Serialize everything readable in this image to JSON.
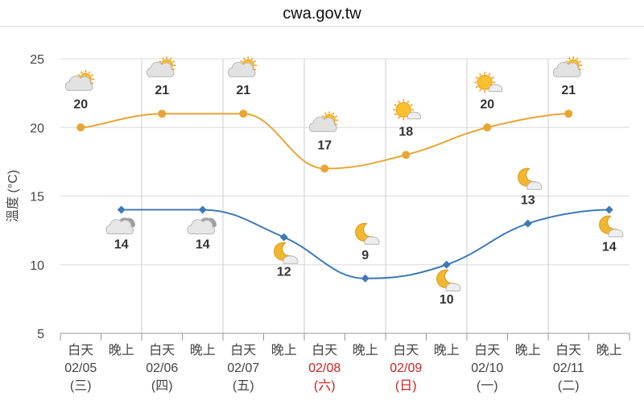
{
  "header": {
    "site": "cwa.gov.tw"
  },
  "chart_data": {
    "type": "line",
    "ylabel": "溫度 (°C)",
    "ylim": [
      5,
      25
    ],
    "yticks": [
      5,
      10,
      15,
      20,
      25
    ],
    "grid": true,
    "x": [
      "白天 02/05 (三)",
      "晚上",
      "白天 02/06 (四)",
      "晚上",
      "白天 02/07 (五)",
      "晚上",
      "白天 02/08 (六)",
      "晚上",
      "白天 02/09 (日)",
      "晚上",
      "白天 02/10 (一)",
      "晚上",
      "白天 02/11 (二)",
      "晚上"
    ],
    "columns": [
      {
        "period": "白天",
        "date": "02/05",
        "weekday": "(三)",
        "holiday": false
      },
      {
        "period": "晚上"
      },
      {
        "period": "白天",
        "date": "02/06",
        "weekday": "(四)",
        "holiday": false
      },
      {
        "period": "晚上"
      },
      {
        "period": "白天",
        "date": "02/07",
        "weekday": "(五)",
        "holiday": false
      },
      {
        "period": "晚上"
      },
      {
        "period": "白天",
        "date": "02/08",
        "weekday": "(六)",
        "holiday": true
      },
      {
        "period": "晚上"
      },
      {
        "period": "白天",
        "date": "02/09",
        "weekday": "(日)",
        "holiday": true
      },
      {
        "period": "晚上"
      },
      {
        "period": "白天",
        "date": "02/10",
        "weekday": "(一)",
        "holiday": false
      },
      {
        "period": "晚上"
      },
      {
        "period": "白天",
        "date": "02/11",
        "weekday": "(二)",
        "holiday": false
      },
      {
        "period": "晚上"
      }
    ],
    "series": [
      {
        "color": "#e8a534",
        "marker": "circle",
        "points": [
          {
            "x": 0,
            "y": 20,
            "icon": "partly-cloudy-sun-icon"
          },
          {
            "x": 2,
            "y": 21,
            "icon": "partly-cloudy-sun-icon"
          },
          {
            "x": 4,
            "y": 21,
            "icon": "partly-cloudy-sun-icon"
          },
          {
            "x": 6,
            "y": 17,
            "icon": "partly-cloudy-sun-icon"
          },
          {
            "x": 8,
            "y": 18,
            "icon": "sun-cloud-icon"
          },
          {
            "x": 10,
            "y": 20,
            "icon": "sun-cloud-icon"
          },
          {
            "x": 12,
            "y": 21,
            "icon": "partly-cloudy-sun-icon"
          }
        ]
      },
      {
        "color": "#3f7ab5",
        "marker": "diamond",
        "points": [
          {
            "x": 1,
            "y": 14,
            "icon": "cloudy-night-icon"
          },
          {
            "x": 3,
            "y": 14,
            "icon": "cloudy-night-icon"
          },
          {
            "x": 5,
            "y": 12,
            "icon": "moon-cloud-icon"
          },
          {
            "x": 7,
            "y": 9,
            "icon": "moon-cloud-icon"
          },
          {
            "x": 9,
            "y": 10,
            "icon": "moon-cloud-icon"
          },
          {
            "x": 11,
            "y": 13,
            "icon": "moon-cloud-icon"
          },
          {
            "x": 13,
            "y": 14,
            "icon": "moon-cloud-icon"
          }
        ]
      }
    ],
    "colors": {
      "grid": "#dcdcdc",
      "separator": "#c8cdd6",
      "axis": "#999999",
      "holiday": "#cc2222"
    }
  }
}
